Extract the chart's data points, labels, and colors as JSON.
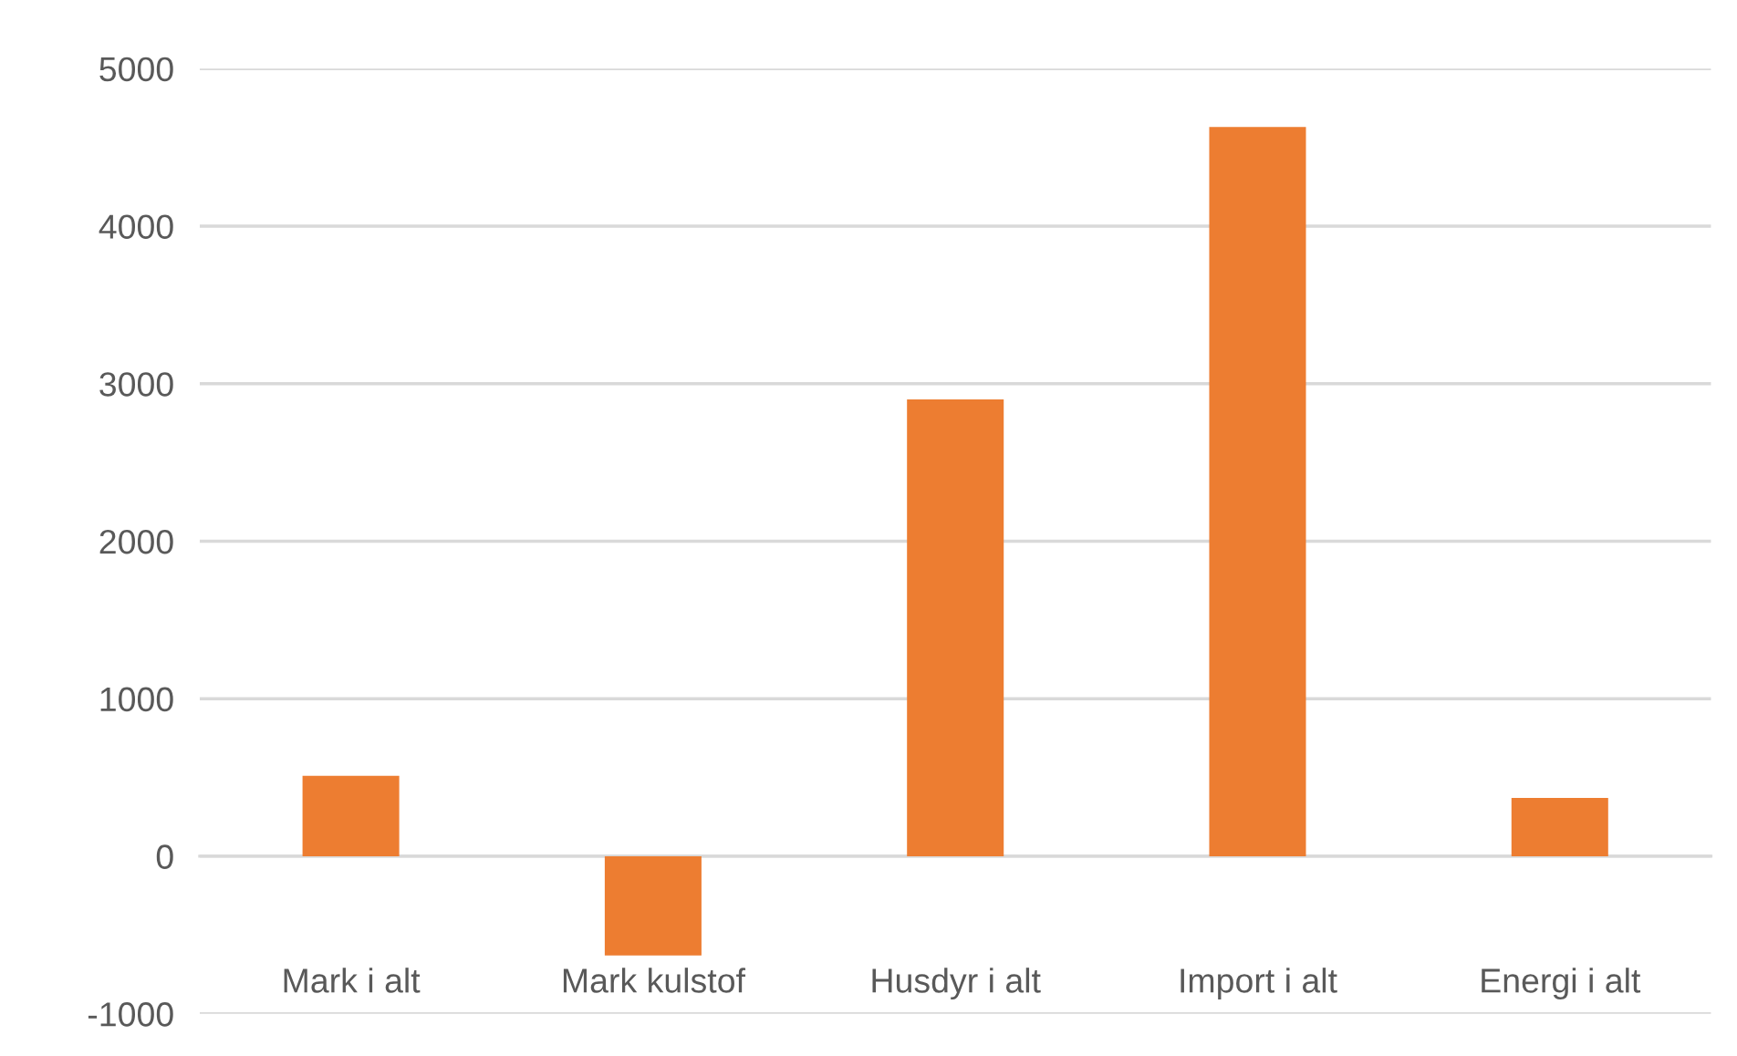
{
  "chart_data": {
    "type": "bar",
    "categories": [
      "Mark i alt",
      "Mark kulstof",
      "Husdyr i alt",
      "Import i alt",
      "Energi i alt"
    ],
    "values": [
      510,
      -630,
      2900,
      4630,
      370
    ],
    "color": "#ed7d31",
    "ylim": [
      -1000,
      5000
    ],
    "yticks": [
      -1000,
      0,
      1000,
      2000,
      3000,
      4000,
      5000
    ],
    "grid": "y"
  }
}
